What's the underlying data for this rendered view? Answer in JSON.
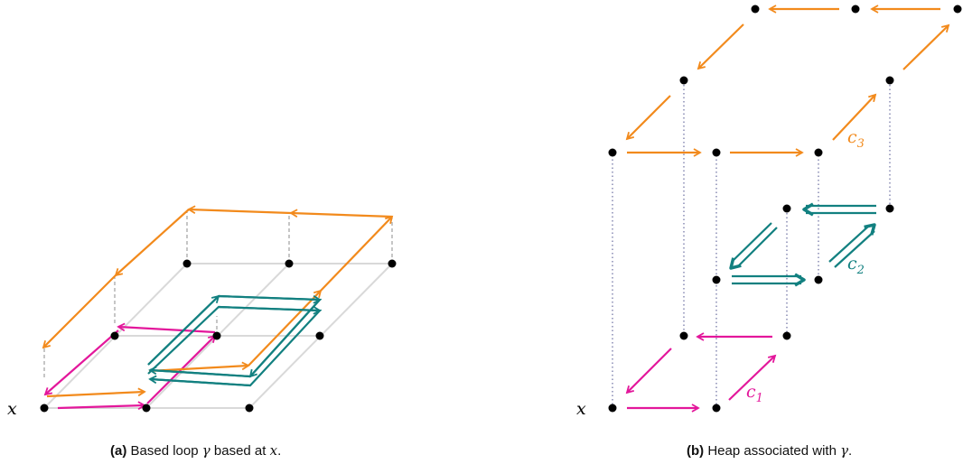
{
  "panel_a": {
    "base_label": "x",
    "caption_tag": "(a)",
    "caption_pre": "Based loop ",
    "caption_gamma": "γ",
    "caption_mid": " based at ",
    "caption_x": "x",
    "caption_end": "."
  },
  "panel_b": {
    "base_label": "x",
    "c1": "c",
    "c1_sub": "1",
    "c2": "c",
    "c2_sub": "2",
    "c3": "c",
    "c3_sub": "3",
    "caption_tag": "(b)",
    "caption_pre": "Heap associated with ",
    "caption_gamma": "γ",
    "caption_end": "."
  },
  "colors": {
    "magenta": "#e3179b",
    "teal": "#128080",
    "orange": "#f28a1c",
    "grid": "#d9d9d9",
    "dash": "#8c8c8c",
    "dot": "#000000"
  }
}
